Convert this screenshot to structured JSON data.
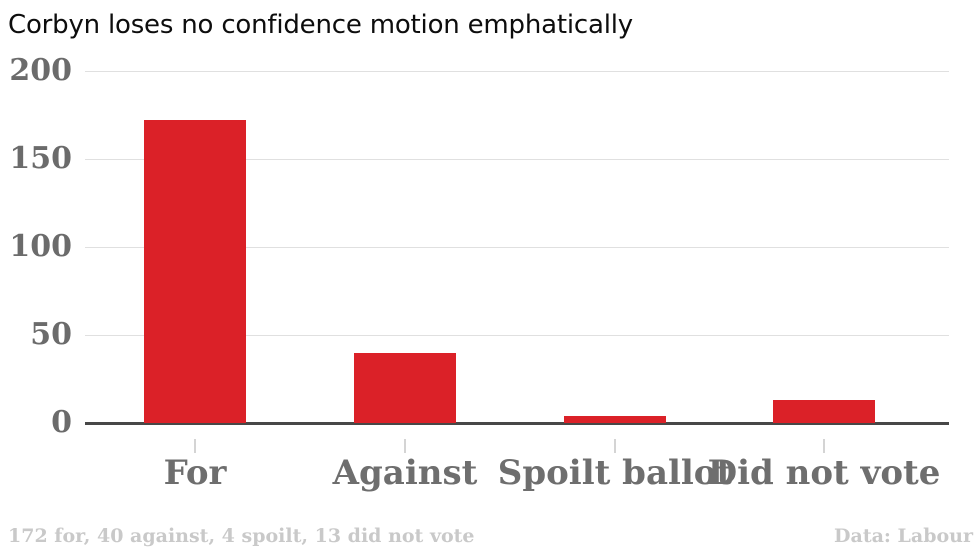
{
  "title": "Corbyn loses no confidence motion emphatically",
  "footer": {
    "left": "172 for, 40 against, 4 spoilt, 13 did not vote",
    "right": "Data: Labour"
  },
  "colors": {
    "bar": "#db2128",
    "title_text": "#0d0d0d",
    "y_axis_labels": "#6b6b6b",
    "x_axis_labels": "#6e6e6e",
    "gridline": "#e0e0e0",
    "baseline": "#474747",
    "tick": "#d4d4d4",
    "footer_text": "#c9c9c9",
    "background": "#ffffff"
  },
  "chart_data": {
    "type": "bar",
    "categories": [
      "For",
      "Against",
      "Spoilt ballot",
      "Did not vote"
    ],
    "values": [
      172,
      40,
      4,
      13
    ],
    "title": "Corbyn loses no confidence motion emphatically",
    "xlabel": "",
    "ylabel": "",
    "ylim": [
      0,
      200
    ],
    "yticks": [
      0,
      50,
      100,
      150,
      200
    ],
    "grid": true,
    "legend": false,
    "bar_color": "#db2128",
    "annotation": "172 for, 40 against, 4 spoilt, 13 did not vote",
    "source": "Data: Labour"
  }
}
